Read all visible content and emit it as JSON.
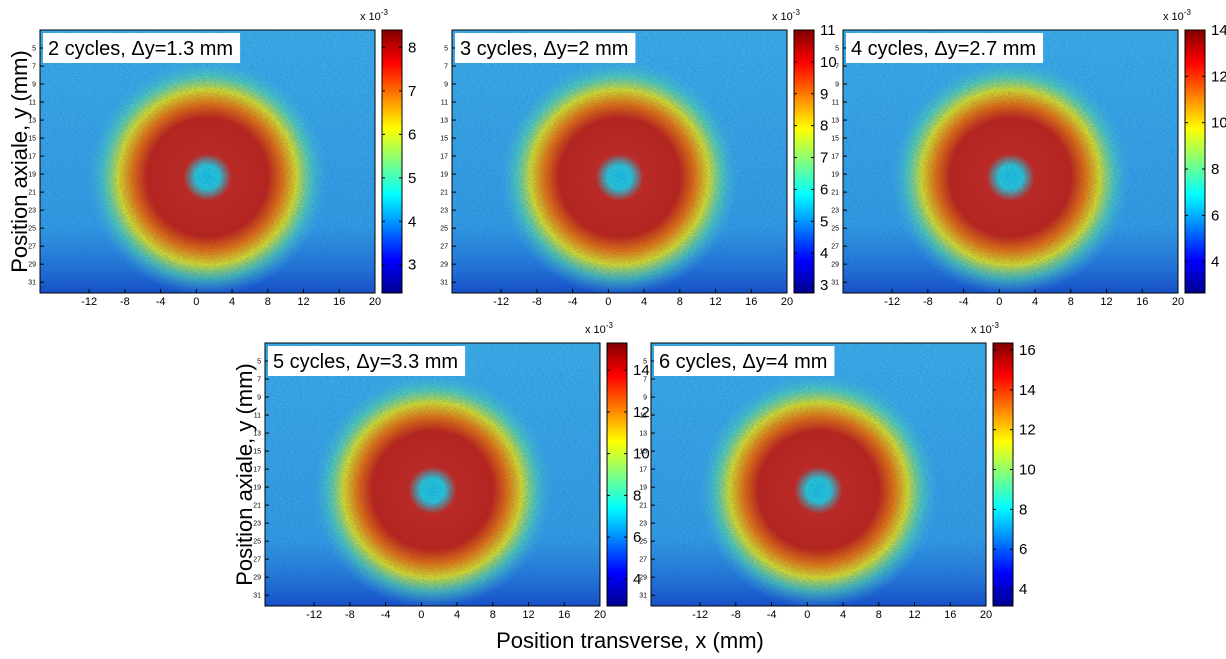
{
  "chart_data": [
    {
      "type": "heatmap",
      "title": "2 cycles, Δy=1.3 mm",
      "ylabel": "Position axiale, y (mm)",
      "xlim": [
        -17.5,
        20
      ],
      "xticks": [
        -12,
        -8,
        -4,
        0,
        4,
        8,
        12,
        16,
        20
      ],
      "ylim": [
        3,
        32.2
      ],
      "yreverse": true,
      "yticks": [
        5,
        7,
        9,
        11,
        13,
        15,
        17,
        19,
        21,
        23,
        25,
        27,
        29,
        31
      ],
      "colorbar": {
        "clim": [
          2.35,
          8.4
        ],
        "cticks": [
          3,
          4,
          5,
          6,
          7,
          8
        ],
        "multiplier": "x 10",
        "exponent": "-3"
      }
    },
    {
      "type": "heatmap",
      "title": "3 cycles, Δy=2 mm",
      "xlim": [
        -17.5,
        20
      ],
      "xticks": [
        -12,
        -8,
        -4,
        0,
        4,
        8,
        12,
        16,
        20
      ],
      "ylim": [
        3,
        32.2
      ],
      "yreverse": true,
      "yticks": [
        5,
        7,
        9,
        11,
        13,
        15,
        17,
        19,
        21,
        23,
        25,
        27,
        29,
        31
      ],
      "colorbar": {
        "clim": [
          2.75,
          11
        ],
        "cticks": [
          3,
          4,
          5,
          6,
          7,
          8,
          9,
          10,
          11
        ],
        "multiplier": "x 10",
        "exponent": "-3"
      }
    },
    {
      "type": "heatmap",
      "title": "4 cycles, Δy=2.7 mm",
      "xlim": [
        -17.5,
        20
      ],
      "xticks": [
        -12,
        -8,
        -4,
        0,
        4,
        8,
        12,
        16,
        20
      ],
      "ylim": [
        3,
        32.2
      ],
      "yreverse": true,
      "yticks": [
        5,
        7,
        9,
        11,
        13,
        15,
        17,
        19,
        21,
        23,
        25,
        27,
        29,
        31
      ],
      "colorbar": {
        "clim": [
          2.65,
          14
        ],
        "cticks": [
          4,
          6,
          8,
          10,
          12,
          14
        ],
        "multiplier": "x 10",
        "exponent": "-3"
      }
    },
    {
      "type": "heatmap",
      "title": "5 cycles, Δy=3.3 mm",
      "ylabel": "Position axiale, y (mm)",
      "xlabel": "Position transverse, x (mm)",
      "xlim": [
        -17.5,
        20
      ],
      "xticks": [
        -12,
        -8,
        -4,
        0,
        4,
        8,
        12,
        16,
        20
      ],
      "ylim": [
        3,
        32.2
      ],
      "yreverse": true,
      "yticks": [
        5,
        7,
        9,
        11,
        13,
        15,
        17,
        19,
        21,
        23,
        25,
        27,
        29,
        31
      ],
      "colorbar": {
        "clim": [
          2.7,
          15.3
        ],
        "cticks": [
          4,
          6,
          8,
          10,
          12,
          14
        ],
        "multiplier": "x 10",
        "exponent": "-3"
      }
    },
    {
      "type": "heatmap",
      "title": "6 cycles, Δy=4 mm",
      "xlim": [
        -17.5,
        20
      ],
      "xticks": [
        -12,
        -8,
        -4,
        0,
        4,
        8,
        12,
        16,
        20
      ],
      "ylim": [
        3,
        32.2
      ],
      "yreverse": true,
      "yticks": [
        5,
        7,
        9,
        11,
        13,
        15,
        17,
        19,
        21,
        23,
        25,
        27,
        29,
        31
      ],
      "colorbar": {
        "clim": [
          3.15,
          16.35
        ],
        "cticks": [
          4,
          6,
          8,
          10,
          12,
          14,
          16
        ],
        "multiplier": "x 10",
        "exponent": "-3"
      }
    }
  ]
}
